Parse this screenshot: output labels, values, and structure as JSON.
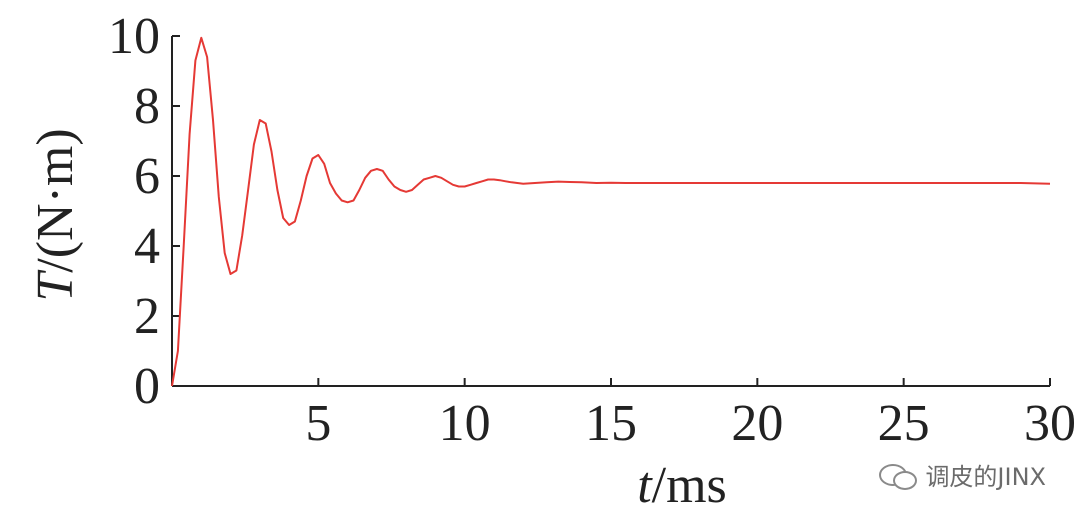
{
  "chart_data": {
    "type": "line",
    "xlabel": "t/ms",
    "ylabel": "T/(N·m)",
    "xlim": [
      0,
      30
    ],
    "ylim": [
      0,
      10
    ],
    "x_ticks": [
      5,
      10,
      15,
      20,
      25,
      30
    ],
    "y_ticks": [
      0,
      2,
      4,
      6,
      8,
      10
    ],
    "grid": false,
    "series": [
      {
        "color": "#e53935",
        "x": [
          0,
          0.2,
          0.4,
          0.6,
          0.8,
          1.0,
          1.2,
          1.4,
          1.6,
          1.8,
          2.0,
          2.2,
          2.4,
          2.6,
          2.8,
          3.0,
          3.2,
          3.4,
          3.6,
          3.8,
          4.0,
          4.2,
          4.4,
          4.6,
          4.8,
          5.0,
          5.2,
          5.4,
          5.6,
          5.8,
          6.0,
          6.2,
          6.4,
          6.6,
          6.8,
          7.0,
          7.2,
          7.4,
          7.6,
          7.8,
          8.0,
          8.2,
          8.4,
          8.6,
          8.8,
          9.0,
          9.2,
          9.4,
          9.6,
          9.8,
          10.0,
          10.2,
          10.4,
          10.6,
          10.8,
          11.0,
          11.2,
          11.4,
          11.6,
          11.8,
          12.0,
          12.4,
          12.8,
          13.2,
          13.6,
          14.0,
          14.5,
          15.0,
          15.5,
          16.0,
          17.0,
          18.0,
          19.0,
          20.0,
          21.0,
          22.0,
          23.0,
          24.0,
          25.0,
          26.0,
          27.0,
          28.0,
          29.0,
          30.0
        ],
        "y": [
          0,
          1.0,
          4.0,
          7.2,
          9.3,
          9.95,
          9.4,
          7.6,
          5.4,
          3.8,
          3.2,
          3.3,
          4.3,
          5.6,
          6.9,
          7.6,
          7.5,
          6.7,
          5.6,
          4.8,
          4.6,
          4.7,
          5.3,
          6.0,
          6.5,
          6.6,
          6.35,
          5.8,
          5.5,
          5.3,
          5.25,
          5.3,
          5.6,
          5.95,
          6.15,
          6.2,
          6.15,
          5.9,
          5.7,
          5.6,
          5.55,
          5.6,
          5.75,
          5.9,
          5.95,
          6.0,
          5.95,
          5.85,
          5.75,
          5.7,
          5.7,
          5.75,
          5.8,
          5.85,
          5.9,
          5.9,
          5.88,
          5.85,
          5.82,
          5.8,
          5.78,
          5.8,
          5.82,
          5.84,
          5.83,
          5.82,
          5.8,
          5.81,
          5.8,
          5.8,
          5.8,
          5.8,
          5.8,
          5.8,
          5.8,
          5.8,
          5.8,
          5.8,
          5.8,
          5.8,
          5.8,
          5.8,
          5.8,
          5.78
        ]
      }
    ]
  },
  "watermark": {
    "text": "调皮的JINX",
    "icon": "wechat-icon"
  }
}
